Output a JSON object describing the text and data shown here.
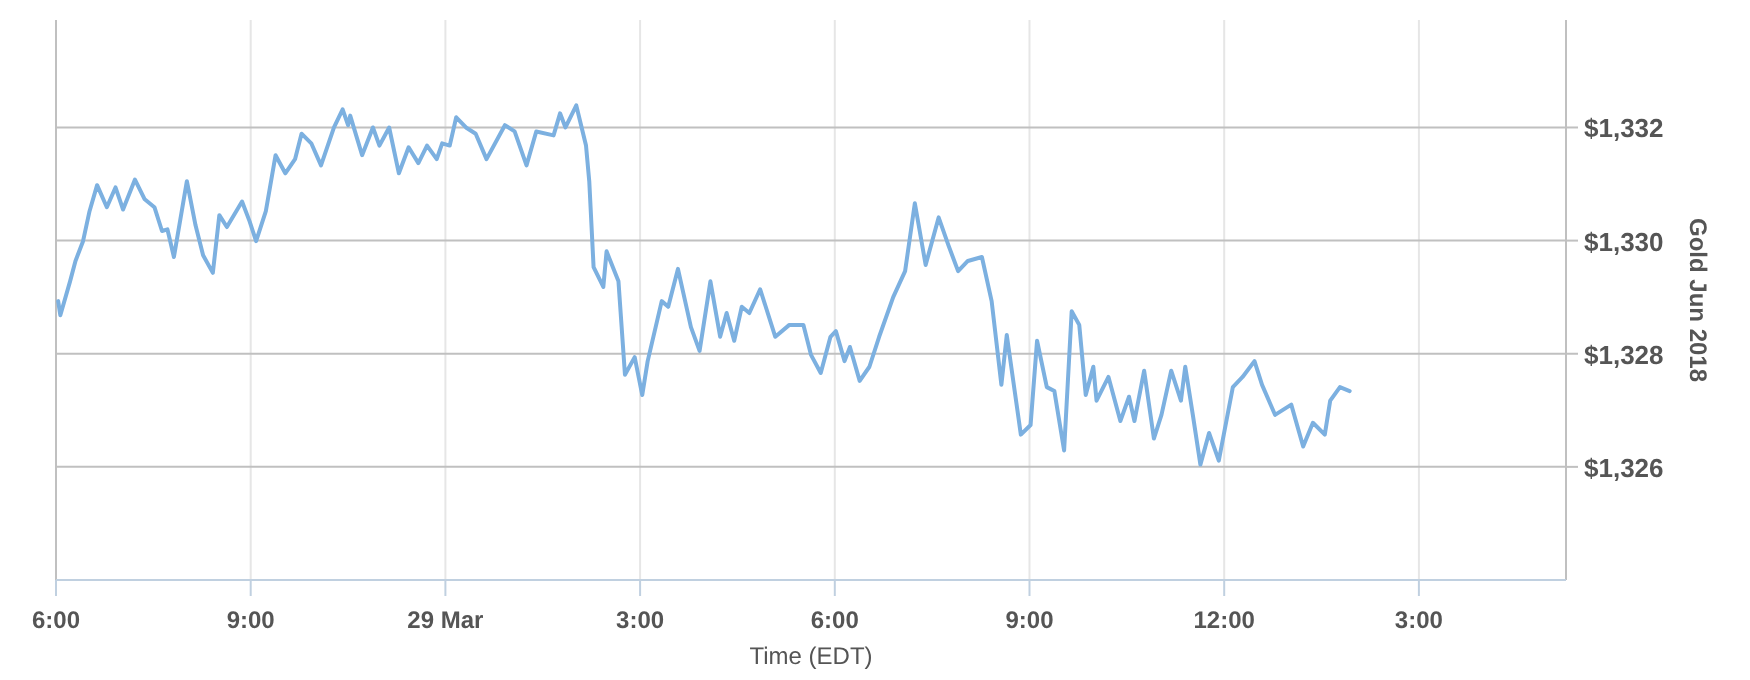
{
  "chart_data": {
    "type": "line",
    "xlabel": "Time (EDT)",
    "ylabel": "Gold Jun 2018",
    "grid": true,
    "marker": "none",
    "line_style": "solid",
    "xlim": [
      "2018-03-28T18:00",
      "2018-03-29T17:16"
    ],
    "ylim": [
      1324,
      1333.9
    ],
    "xticks": [
      {
        "value": "2018-03-28T18:00",
        "label": "6:00"
      },
      {
        "value": "2018-03-28T21:00",
        "label": "9:00"
      },
      {
        "value": "2018-03-29T00:00",
        "label": "29 Mar"
      },
      {
        "value": "2018-03-29T03:00",
        "label": "3:00"
      },
      {
        "value": "2018-03-29T06:00",
        "label": "6:00"
      },
      {
        "value": "2018-03-29T09:00",
        "label": "9:00"
      },
      {
        "value": "2018-03-29T12:00",
        "label": "12:00"
      },
      {
        "value": "2018-03-29T15:00",
        "label": "3:00"
      }
    ],
    "yticks": [
      {
        "value": 1326,
        "label": "$1,326"
      },
      {
        "value": 1328,
        "label": "$1,328"
      },
      {
        "value": 1330,
        "label": "$1,330"
      },
      {
        "value": 1332,
        "label": "$1,332"
      }
    ],
    "series": [
      {
        "color": "#7cb0e0",
        "x": [
          "2018-03-28T18:02",
          "2018-03-28T18:04",
          "2018-03-28T18:13",
          "2018-03-28T18:18",
          "2018-03-28T18:25",
          "2018-03-28T18:31",
          "2018-03-28T18:38",
          "2018-03-28T18:47",
          "2018-03-28T18:55",
          "2018-03-28T19:02",
          "2018-03-28T19:13",
          "2018-03-28T19:22",
          "2018-03-28T19:31",
          "2018-03-28T19:38",
          "2018-03-28T19:43",
          "2018-03-28T19:49",
          "2018-03-28T20:01",
          "2018-03-28T20:09",
          "2018-03-28T20:16",
          "2018-03-28T20:25",
          "2018-03-28T20:31",
          "2018-03-28T20:38",
          "2018-03-28T20:52",
          "2018-03-28T20:59",
          "2018-03-28T21:05",
          "2018-03-28T21:14",
          "2018-03-28T21:23",
          "2018-03-28T21:32",
          "2018-03-28T21:41",
          "2018-03-28T21:47",
          "2018-03-28T21:56",
          "2018-03-28T22:05",
          "2018-03-28T22:17",
          "2018-03-28T22:25",
          "2018-03-28T22:30",
          "2018-03-28T22:32",
          "2018-03-28T22:43",
          "2018-03-28T22:53",
          "2018-03-28T22:59",
          "2018-03-28T23:08",
          "2018-03-28T23:17",
          "2018-03-28T23:26",
          "2018-03-28T23:35",
          "2018-03-28T23:43",
          "2018-03-28T23:52",
          "2018-03-28T23:57",
          "2018-03-29T00:04",
          "2018-03-29T00:10",
          "2018-03-29T00:19",
          "2018-03-29T00:28",
          "2018-03-29T00:38",
          "2018-03-29T00:55",
          "2018-03-29T01:04",
          "2018-03-29T01:15",
          "2018-03-29T01:24",
          "2018-03-29T01:40",
          "2018-03-29T01:46",
          "2018-03-29T01:51",
          "2018-03-29T02:01",
          "2018-03-29T02:10",
          "2018-03-29T02:13",
          "2018-03-29T02:17",
          "2018-03-29T02:26",
          "2018-03-29T02:29",
          "2018-03-29T02:40",
          "2018-03-29T02:46",
          "2018-03-29T02:55",
          "2018-03-29T03:02",
          "2018-03-29T03:07",
          "2018-03-29T03:20",
          "2018-03-29T03:26",
          "2018-03-29T03:35",
          "2018-03-29T03:47",
          "2018-03-29T03:55",
          "2018-03-29T04:05",
          "2018-03-29T04:14",
          "2018-03-29T04:20",
          "2018-03-29T04:27",
          "2018-03-29T04:34",
          "2018-03-29T04:41",
          "2018-03-29T04:51",
          "2018-03-29T05:05",
          "2018-03-29T05:18",
          "2018-03-29T05:31",
          "2018-03-29T05:38",
          "2018-03-29T05:47",
          "2018-03-29T05:56",
          "2018-03-29T06:01",
          "2018-03-29T06:09",
          "2018-03-29T06:14",
          "2018-03-29T06:23",
          "2018-03-29T06:32",
          "2018-03-29T06:41",
          "2018-03-29T06:54",
          "2018-03-29T07:05",
          "2018-03-29T07:14",
          "2018-03-29T07:24",
          "2018-03-29T07:36",
          "2018-03-29T07:45",
          "2018-03-29T07:54",
          "2018-03-29T08:03",
          "2018-03-29T08:16",
          "2018-03-29T08:25",
          "2018-03-29T08:34",
          "2018-03-29T08:39",
          "2018-03-29T08:52",
          "2018-03-29T09:01",
          "2018-03-29T09:07",
          "2018-03-29T09:16",
          "2018-03-29T09:23",
          "2018-03-29T09:32",
          "2018-03-29T09:39",
          "2018-03-29T09:46",
          "2018-03-29T09:52",
          "2018-03-29T09:59",
          "2018-03-29T10:02",
          "2018-03-29T10:13",
          "2018-03-29T10:24",
          "2018-03-29T10:32",
          "2018-03-29T10:37",
          "2018-03-29T10:46",
          "2018-03-29T10:55",
          "2018-03-29T11:02",
          "2018-03-29T11:11",
          "2018-03-29T11:20",
          "2018-03-29T11:24",
          "2018-03-29T11:31",
          "2018-03-29T11:38",
          "2018-03-29T11:46",
          "2018-03-29T11:55",
          "2018-03-29T12:08",
          "2018-03-29T12:17",
          "2018-03-29T12:28",
          "2018-03-29T12:35",
          "2018-03-29T12:47",
          "2018-03-29T13:02",
          "2018-03-29T13:13",
          "2018-03-29T13:22",
          "2018-03-29T13:33",
          "2018-03-29T13:38",
          "2018-03-29T13:47",
          "2018-03-29T13:56"
        ],
        "values": [
          1328.93,
          1328.68,
          1329.28,
          1329.64,
          1329.99,
          1330.52,
          1330.98,
          1330.59,
          1330.94,
          1330.55,
          1331.08,
          1330.73,
          1330.59,
          1330.17,
          1330.2,
          1329.71,
          1331.05,
          1330.27,
          1329.74,
          1329.43,
          1330.45,
          1330.24,
          1330.69,
          1330.34,
          1329.99,
          1330.52,
          1331.51,
          1331.19,
          1331.44,
          1331.89,
          1331.72,
          1331.33,
          1332.0,
          1332.32,
          1332.04,
          1332.21,
          1331.51,
          1332.0,
          1331.68,
          1332.0,
          1331.19,
          1331.65,
          1331.37,
          1331.68,
          1331.44,
          1331.72,
          1331.68,
          1332.18,
          1332.0,
          1331.89,
          1331.44,
          1332.04,
          1331.93,
          1331.33,
          1331.93,
          1331.86,
          1332.25,
          1332.0,
          1332.39,
          1331.68,
          1331.05,
          1329.53,
          1329.18,
          1329.81,
          1329.28,
          1327.63,
          1327.94,
          1327.27,
          1327.87,
          1328.93,
          1328.83,
          1329.5,
          1328.47,
          1328.05,
          1329.28,
          1328.3,
          1328.72,
          1328.23,
          1328.83,
          1328.72,
          1329.14,
          1328.3,
          1328.51,
          1328.51,
          1327.98,
          1327.66,
          1328.3,
          1328.4,
          1327.87,
          1328.12,
          1327.52,
          1327.77,
          1328.3,
          1329.0,
          1329.46,
          1330.66,
          1329.57,
          1330.41,
          1329.92,
          1329.46,
          1329.64,
          1329.71,
          1328.93,
          1327.45,
          1328.33,
          1326.57,
          1326.74,
          1328.23,
          1327.41,
          1327.34,
          1326.29,
          1328.75,
          1328.51,
          1327.27,
          1327.77,
          1327.17,
          1327.59,
          1326.81,
          1327.24,
          1326.81,
          1327.7,
          1326.5,
          1326.92,
          1327.7,
          1327.17,
          1327.77,
          1326.92,
          1326.04,
          1326.6,
          1326.11,
          1327.41,
          1327.59,
          1327.87,
          1327.45,
          1326.92,
          1327.1,
          1326.36,
          1326.78,
          1326.57,
          1327.17,
          1327.41,
          1327.34
        ]
      }
    ]
  }
}
